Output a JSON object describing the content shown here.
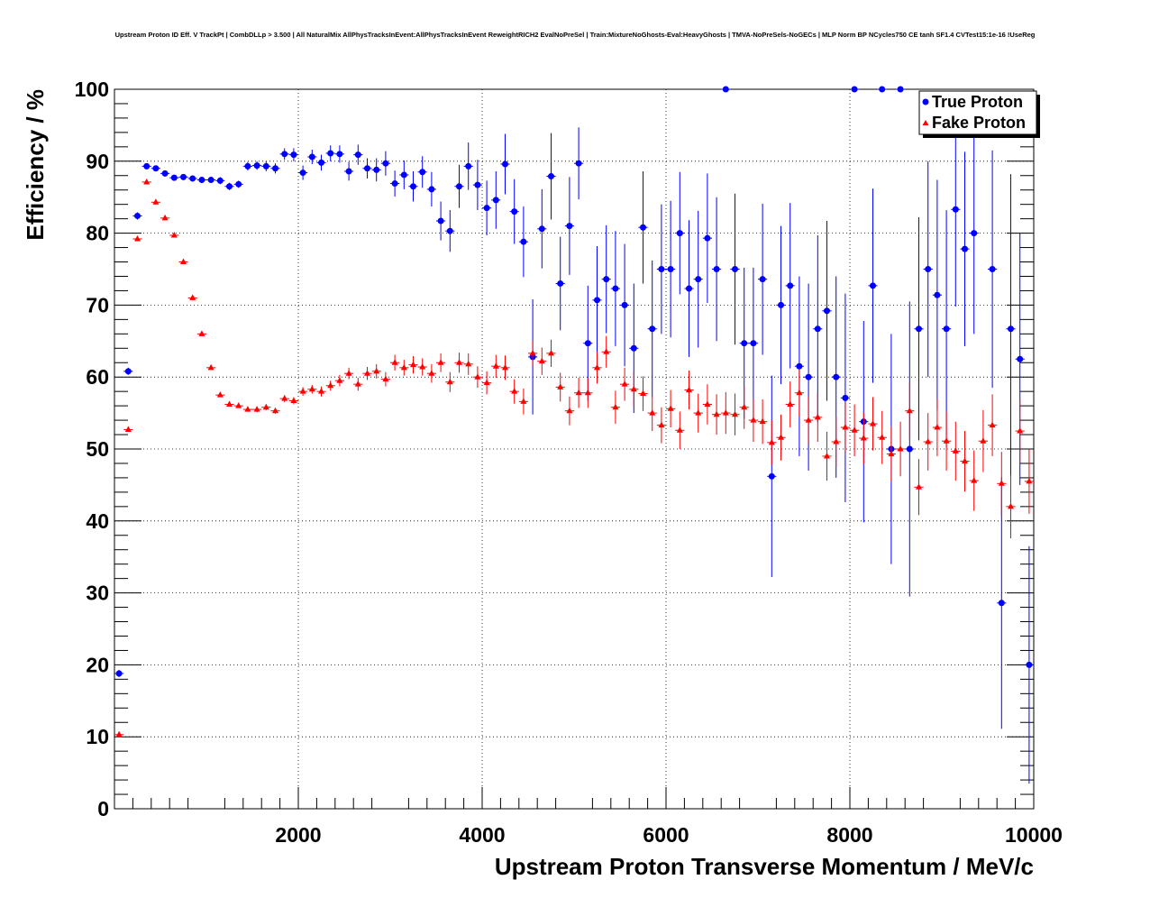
{
  "title": "Upstream Proton ID Eff. V TrackPt | CombDLLp > 3.500 | All NaturalMix AllPhysTracksInEvent:AllPhysTracksInEvent ReweightRICH2 EvalNoPreSel | Train:MixtureNoGhosts-Eval:HeavyGhosts | TMVA-NoPreSels-NoGECs | MLP Norm BP NCycles750 CE tanh SF1.4 CVTest15:1e-16 !UseReg",
  "chart_data": {
    "type": "scatter",
    "title": "Upstream Proton ID Eff. V TrackPt | CombDLLp > 3.500 | All NaturalMix AllPhysTracksInEvent:AllPhysTracksInEvent ReweightRICH2 EvalNoPreSel | Train:MixtureNoGhosts-Eval:HeavyGhosts | TMVA-NoPreSels-NoGECs | MLP Norm BP NCycles750 CE tanh SF1.4 CVTest15:1e-16 !UseReg",
    "xlabel": "Upstream Proton Transverse Momentum / MeV/c",
    "ylabel": "Efficiency / %",
    "xlim": [
      0,
      10000
    ],
    "ylim": [
      0,
      100
    ],
    "xticks": [
      2000,
      4000,
      6000,
      8000,
      10000
    ],
    "yticks": [
      0,
      10,
      20,
      30,
      40,
      50,
      60,
      70,
      80,
      90,
      100
    ],
    "grid": true,
    "legend_position": "top-right",
    "bin_half_width": 50,
    "series": [
      {
        "name": "True Proton",
        "color": "#0000ff",
        "marker": "circle",
        "points": [
          [
            50,
            18.8,
            0.5
          ],
          [
            150,
            60.8,
            0.5
          ],
          [
            250,
            82.4,
            0.5
          ],
          [
            350,
            89.3,
            0.4
          ],
          [
            450,
            89.0,
            0.4
          ],
          [
            550,
            88.3,
            0.4
          ],
          [
            650,
            87.7,
            0.4
          ],
          [
            750,
            87.8,
            0.4
          ],
          [
            850,
            87.6,
            0.4
          ],
          [
            950,
            87.4,
            0.4
          ],
          [
            1050,
            87.4,
            0.4
          ],
          [
            1150,
            87.3,
            0.5
          ],
          [
            1250,
            86.5,
            0.5
          ],
          [
            1350,
            86.8,
            0.5
          ],
          [
            1450,
            89.3,
            0.6
          ],
          [
            1550,
            89.4,
            0.6
          ],
          [
            1650,
            89.3,
            0.7
          ],
          [
            1750,
            89.0,
            0.7
          ],
          [
            1850,
            91.0,
            0.8
          ],
          [
            1950,
            90.9,
            0.9
          ],
          [
            2050,
            88.4,
            1.0
          ],
          [
            2150,
            90.6,
            1.0
          ],
          [
            2250,
            89.8,
            1.1
          ],
          [
            2350,
            91.1,
            1.1
          ],
          [
            2450,
            91.0,
            1.2
          ],
          [
            2550,
            88.6,
            1.3
          ],
          [
            2650,
            90.9,
            1.4
          ],
          [
            2750,
            89.0,
            1.4
          ],
          [
            2850,
            88.8,
            1.6
          ],
          [
            2950,
            89.7,
            1.7
          ],
          [
            3050,
            86.9,
            1.8
          ],
          [
            3150,
            88.1,
            2.0
          ],
          [
            3250,
            86.5,
            2.1
          ],
          [
            3350,
            88.5,
            2.2
          ],
          [
            3450,
            86.1,
            2.4
          ],
          [
            3550,
            81.7,
            2.7
          ],
          [
            3650,
            80.3,
            2.9
          ],
          [
            3750,
            86.5,
            3.0
          ],
          [
            3850,
            89.3,
            3.3
          ],
          [
            3950,
            86.7,
            3.5
          ],
          [
            4050,
            83.5,
            3.8
          ],
          [
            4150,
            84.6,
            4.0
          ],
          [
            4250,
            89.6,
            4.2
          ],
          [
            4350,
            83.0,
            4.5
          ],
          [
            4450,
            78.8,
            4.9
          ],
          [
            4550,
            62.8,
            8.0
          ],
          [
            4650,
            80.6,
            5.5
          ],
          [
            4750,
            87.9,
            6.0
          ],
          [
            4850,
            73.0,
            6.5
          ],
          [
            4950,
            81.0,
            6.8
          ],
          [
            5050,
            89.7,
            5.0
          ],
          [
            5150,
            64.7,
            8.0
          ],
          [
            5250,
            70.7,
            7.5
          ],
          [
            5350,
            73.6,
            7.5
          ],
          [
            5450,
            72.3,
            8.0
          ],
          [
            5550,
            70.0,
            8.5
          ],
          [
            5650,
            64.0,
            9.0
          ],
          [
            5750,
            80.8,
            7.8
          ],
          [
            5850,
            66.7,
            9.5
          ],
          [
            5950,
            75.0,
            9.0
          ],
          [
            6050,
            75.0,
            9.5
          ],
          [
            6150,
            80.0,
            8.5
          ],
          [
            6250,
            72.3,
            9.5
          ],
          [
            6350,
            73.6,
            9.5
          ],
          [
            6450,
            79.3,
            9.0
          ],
          [
            6550,
            75.0,
            10.0
          ],
          [
            6650,
            100.0,
            0
          ],
          [
            6750,
            75.0,
            10.5
          ],
          [
            6850,
            64.7,
            10.5
          ],
          [
            6950,
            64.7,
            10.5
          ],
          [
            7050,
            73.6,
            10.5
          ],
          [
            7150,
            46.2,
            14.0
          ],
          [
            7250,
            70.0,
            11.0
          ],
          [
            7350,
            72.7,
            11.5
          ],
          [
            7450,
            61.5,
            12.5
          ],
          [
            7550,
            60.0,
            13.0
          ],
          [
            7650,
            66.7,
            13.0
          ],
          [
            7750,
            69.2,
            12.5
          ],
          [
            7850,
            60.0,
            14.0
          ],
          [
            7950,
            57.1,
            14.5
          ],
          [
            8050,
            100.0,
            0
          ],
          [
            8150,
            53.8,
            14.0
          ],
          [
            8250,
            72.7,
            13.5
          ],
          [
            8350,
            100.0,
            0
          ],
          [
            8450,
            50.0,
            16.0
          ],
          [
            8550,
            100.0,
            0
          ],
          [
            8650,
            50.0,
            20.5
          ],
          [
            8750,
            66.7,
            15.5
          ],
          [
            8850,
            75.0,
            15.0
          ],
          [
            8950,
            71.4,
            16.0
          ],
          [
            9050,
            66.7,
            16.5
          ],
          [
            9150,
            83.3,
            13.5
          ],
          [
            9250,
            77.8,
            13.5
          ],
          [
            9350,
            80.0,
            14.0
          ],
          [
            9550,
            75.0,
            16.5
          ],
          [
            9650,
            28.6,
            17.5
          ],
          [
            9750,
            66.7,
            21.5
          ],
          [
            9850,
            62.5,
            17.5
          ],
          [
            9950,
            20.0,
            16.5
          ]
        ]
      },
      {
        "name": "Fake Proton",
        "color": "#ff0000",
        "marker": "triangle",
        "points": [
          [
            50,
            10.3,
            0.3
          ],
          [
            150,
            52.7,
            0.3
          ],
          [
            250,
            79.2,
            0.3
          ],
          [
            350,
            87.1,
            0.3
          ],
          [
            450,
            84.3,
            0.3
          ],
          [
            550,
            82.1,
            0.3
          ],
          [
            650,
            79.7,
            0.3
          ],
          [
            750,
            76.0,
            0.3
          ],
          [
            850,
            71.0,
            0.3
          ],
          [
            950,
            66.0,
            0.3
          ],
          [
            1050,
            61.3,
            0.3
          ],
          [
            1150,
            57.5,
            0.3
          ],
          [
            1250,
            56.2,
            0.3
          ],
          [
            1350,
            56.0,
            0.3
          ],
          [
            1450,
            55.5,
            0.3
          ],
          [
            1550,
            55.5,
            0.4
          ],
          [
            1650,
            55.8,
            0.4
          ],
          [
            1750,
            55.3,
            0.4
          ],
          [
            1850,
            57.0,
            0.5
          ],
          [
            1950,
            56.7,
            0.5
          ],
          [
            2050,
            58.0,
            0.6
          ],
          [
            2150,
            58.3,
            0.6
          ],
          [
            2250,
            58.0,
            0.7
          ],
          [
            2350,
            58.8,
            0.7
          ],
          [
            2450,
            59.5,
            0.8
          ],
          [
            2550,
            60.5,
            0.8
          ],
          [
            2650,
            59.0,
            0.9
          ],
          [
            2750,
            60.5,
            0.9
          ],
          [
            2850,
            60.8,
            1.0
          ],
          [
            2950,
            59.7,
            1.0
          ],
          [
            3050,
            62.0,
            1.1
          ],
          [
            3150,
            61.3,
            1.1
          ],
          [
            3250,
            61.7,
            1.2
          ],
          [
            3350,
            61.4,
            1.2
          ],
          [
            3450,
            60.5,
            1.3
          ],
          [
            3550,
            62.0,
            1.3
          ],
          [
            3650,
            59.3,
            1.4
          ],
          [
            3750,
            62.0,
            1.4
          ],
          [
            3850,
            61.8,
            1.5
          ],
          [
            3950,
            60.0,
            1.5
          ],
          [
            4050,
            59.2,
            1.6
          ],
          [
            4150,
            61.5,
            1.6
          ],
          [
            4250,
            61.3,
            1.7
          ],
          [
            4350,
            58.0,
            1.7
          ],
          [
            4450,
            56.6,
            1.8
          ],
          [
            4550,
            63.3,
            1.8
          ],
          [
            4650,
            62.2,
            1.9
          ],
          [
            4750,
            63.3,
            1.9
          ],
          [
            4850,
            58.6,
            2.0
          ],
          [
            4950,
            55.3,
            2.0
          ],
          [
            5050,
            57.8,
            2.1
          ],
          [
            5150,
            57.8,
            2.1
          ],
          [
            5250,
            61.3,
            2.2
          ],
          [
            5350,
            63.5,
            2.2
          ],
          [
            5450,
            55.8,
            2.3
          ],
          [
            5550,
            59.0,
            2.3
          ],
          [
            5650,
            58.3,
            2.4
          ],
          [
            5750,
            57.7,
            2.4
          ],
          [
            5850,
            55.0,
            2.5
          ],
          [
            5950,
            53.3,
            2.5
          ],
          [
            6050,
            55.6,
            2.6
          ],
          [
            6150,
            52.6,
            2.6
          ],
          [
            6250,
            58.2,
            2.7
          ],
          [
            6350,
            55.0,
            2.7
          ],
          [
            6450,
            56.2,
            2.8
          ],
          [
            6550,
            54.8,
            2.8
          ],
          [
            6650,
            55.0,
            2.9
          ],
          [
            6750,
            54.8,
            2.9
          ],
          [
            6850,
            55.8,
            3.0
          ],
          [
            6950,
            54.0,
            3.0
          ],
          [
            7050,
            53.8,
            3.1
          ],
          [
            7150,
            50.9,
            3.1
          ],
          [
            7250,
            51.6,
            3.2
          ],
          [
            7350,
            56.2,
            3.2
          ],
          [
            7450,
            57.8,
            3.3
          ],
          [
            7550,
            54.0,
            3.3
          ],
          [
            7650,
            54.4,
            3.4
          ],
          [
            7750,
            49.0,
            3.4
          ],
          [
            7850,
            51.0,
            3.5
          ],
          [
            7950,
            53.0,
            3.5
          ],
          [
            8050,
            52.6,
            3.6
          ],
          [
            8150,
            51.5,
            3.6
          ],
          [
            8250,
            53.5,
            3.7
          ],
          [
            8350,
            51.6,
            3.7
          ],
          [
            8450,
            49.3,
            3.8
          ],
          [
            8550,
            50.0,
            3.8
          ],
          [
            8650,
            55.3,
            3.9
          ],
          [
            8750,
            44.7,
            3.9
          ],
          [
            8850,
            51.0,
            4.0
          ],
          [
            8950,
            53.0,
            4.0
          ],
          [
            9050,
            51.1,
            4.1
          ],
          [
            9150,
            49.7,
            4.1
          ],
          [
            9250,
            48.3,
            4.2
          ],
          [
            9350,
            45.6,
            4.2
          ],
          [
            9450,
            51.1,
            4.3
          ],
          [
            9550,
            53.3,
            4.3
          ],
          [
            9650,
            45.2,
            4.4
          ],
          [
            9750,
            42.0,
            4.4
          ],
          [
            9850,
            52.5,
            4.5
          ],
          [
            9950,
            45.5,
            4.5
          ]
        ]
      }
    ]
  }
}
